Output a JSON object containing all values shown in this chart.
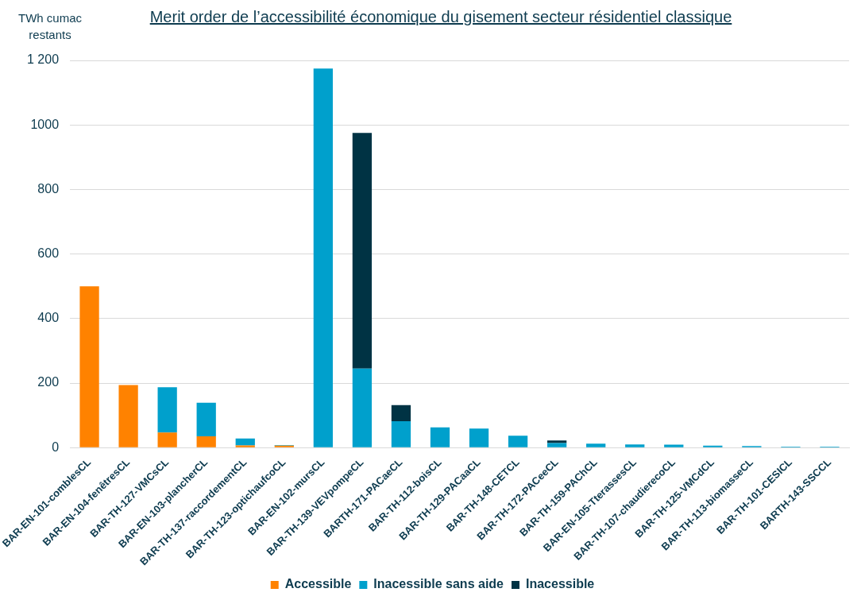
{
  "chart_data": {
    "type": "bar",
    "title": "Merit order de l’accessibilité économique du gisement secteur résidentiel classique",
    "ylabel": "TWh cumac restants",
    "categories": [
      "BAR-EN-101-comblesCL",
      "BAR-EN-104-fenêtresCL",
      "BAR-TH-127-VMCsCL",
      "BAR-EN-103-plancherCL",
      "BAR-TH-137-raccordementCL",
      "BAR-TH-123-optichaufcoCL",
      "BAR-EN-102-mursCL",
      "BAR-TH-139-VEVpompeCL",
      "BARTH-171-PACaeCL",
      "BAR-TH-112-boisCL",
      "BAR-TH-129-PACaaCL",
      "BAR-TH-148-CETCL",
      "BAR-TH-172-PACeeCL",
      "BAR-TH-159-PAChCL",
      "BAR-EN-105-TterassesCL",
      "BAR-TH-107-chaudierecoCL",
      "BAR-TH-125-VMCdCL",
      "BAR-TH-113-biomasseCL",
      "BAR-TH-101-CESICL",
      "BARTH-143-SSCCL"
    ],
    "series": [
      {
        "name": "Accessible",
        "color": "#ff8200",
        "values": [
          500,
          194,
          47,
          35,
          7,
          6,
          0,
          0,
          0,
          0,
          0,
          0,
          0,
          0,
          0,
          0,
          0,
          0,
          0,
          0
        ]
      },
      {
        "name": "Inacessible sans aide",
        "color": "#00a0cc",
        "values": [
          0,
          0,
          140,
          104,
          21,
          2,
          1175,
          245,
          82,
          63,
          59,
          37,
          14,
          12,
          10,
          9,
          6,
          5,
          3,
          3
        ]
      },
      {
        "name": "Inacessible",
        "color": "#003344",
        "values": [
          0,
          0,
          0,
          0,
          0,
          0,
          0,
          730,
          50,
          0,
          0,
          0,
          8,
          0,
          0,
          0,
          0,
          0,
          0,
          0
        ]
      }
    ],
    "stacked": true,
    "ylim": [
      0,
      1200
    ],
    "yticks": [
      0,
      200,
      400,
      600,
      800,
      1000,
      {
        "value": 1200,
        "label": "1 200"
      }
    ],
    "grid": "y",
    "legend": "bottom"
  }
}
